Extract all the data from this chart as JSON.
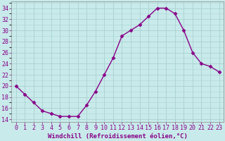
{
  "x": [
    0,
    1,
    2,
    3,
    4,
    5,
    6,
    7,
    8,
    9,
    10,
    11,
    12,
    13,
    14,
    15,
    16,
    17,
    18,
    19,
    20,
    21,
    22,
    23
  ],
  "y": [
    20,
    18.5,
    17,
    15.5,
    15,
    14.5,
    14.5,
    14.5,
    16.5,
    19,
    22,
    25,
    29,
    30,
    31,
    32.5,
    34,
    34,
    33,
    30,
    26,
    24,
    23.5,
    22.5
  ],
  "line_color": "#880088",
  "marker": "D",
  "marker_size": 2.5,
  "background_color": "#c8eaea",
  "grid_color": "#aed4d4",
  "xlabel": "Windchill (Refroidissement éolien,°C)",
  "ylabel_ticks": [
    14,
    16,
    18,
    20,
    22,
    24,
    26,
    28,
    30,
    32,
    34
  ],
  "ylim": [
    13.5,
    35.2
  ],
  "xlim": [
    -0.5,
    23.5
  ],
  "xlabel_fontsize": 6.5,
  "tick_fontsize": 6,
  "line_width": 1.0
}
